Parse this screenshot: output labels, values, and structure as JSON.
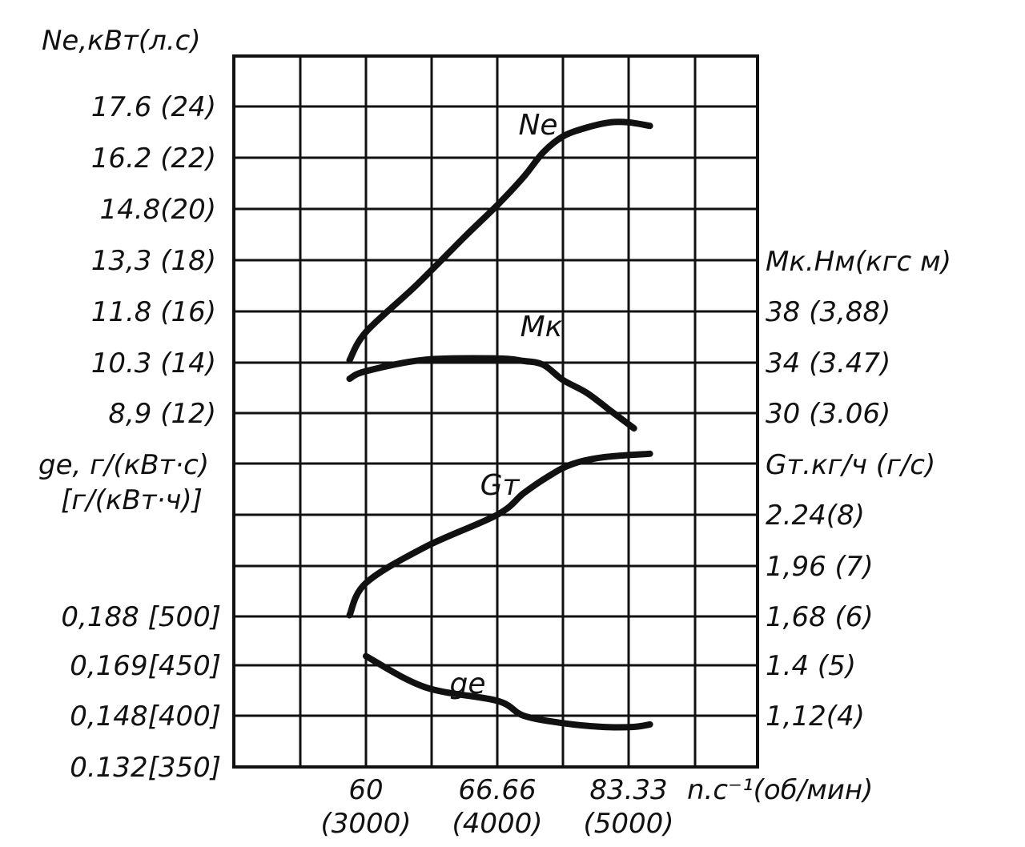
{
  "chart_data": {
    "type": "line",
    "x_title": "n.c⁻¹(об/мин)",
    "x_ticks": [
      {
        "value": 60,
        "label": "60",
        "sub": "(3000)"
      },
      {
        "value": 66.66,
        "label": "66.66",
        "sub": "(4000)"
      },
      {
        "value": 83.33,
        "label": "83.33",
        "sub": "(5000)"
      }
    ],
    "left_axes": [
      {
        "title": "Ne,кВт(л.с)",
        "ticks": [
          "17.6 (24)",
          "16.2 (22)",
          "14.8(20)",
          "13,3 (18)",
          "11.8 (16)",
          "10.3 (14)",
          "8,9 (12)"
        ]
      },
      {
        "title": "ge, г/(кВт·с)",
        "title2": "[г/(кВт·ч)]",
        "ticks": [
          "0,188 [500]",
          "0,169[450]",
          "0,148[400]",
          "0.132[350]"
        ]
      }
    ],
    "right_axes": [
      {
        "title": "Mк.Нм(кгс м)",
        "ticks": [
          "38 (3,88)",
          "34 (3.47)",
          "30 (3.06)"
        ]
      },
      {
        "title": "Gт.кг/ч (г/с)",
        "ticks": [
          "2.24(8)",
          "1,96 (7)",
          "1,68 (6)",
          "1.4 (5)",
          "1,12(4)"
        ]
      }
    ],
    "series": [
      {
        "name": "Ne",
        "axis": "Ne,кВт(л.с)",
        "points": [
          [
            57.5,
            10.4
          ],
          [
            60,
            11.2
          ],
          [
            62.5,
            12.5
          ],
          [
            65,
            13.9
          ],
          [
            66.66,
            14.8
          ],
          [
            70,
            15.6
          ],
          [
            72.5,
            16.3
          ],
          [
            75,
            16.75
          ],
          [
            78,
            17.0
          ],
          [
            81,
            17.15
          ],
          [
            83.33,
            17.15
          ],
          [
            86,
            17.05
          ]
        ]
      },
      {
        "name": "Mк",
        "axis": "Mк.Нм(кгс м)",
        "points": [
          [
            57.5,
            32.7
          ],
          [
            60,
            33.3
          ],
          [
            63,
            34.2
          ],
          [
            66.66,
            34.3
          ],
          [
            70,
            34.1
          ],
          [
            72.5,
            33.8
          ],
          [
            75,
            32.6
          ],
          [
            78,
            31.6
          ],
          [
            81,
            30.2
          ],
          [
            84,
            28.8
          ]
        ]
      },
      {
        "name": "Gт",
        "axis": "Gт.кг/ч (г/с)",
        "points": [
          [
            57.5,
            1.68
          ],
          [
            60,
            1.86
          ],
          [
            63,
            2.06
          ],
          [
            66.66,
            2.24
          ],
          [
            70,
            2.36
          ],
          [
            73,
            2.45
          ],
          [
            76,
            2.52
          ],
          [
            80,
            2.56
          ],
          [
            86,
            2.58
          ]
        ]
      },
      {
        "name": "ge",
        "axis": "ge, г/(кВт·с)",
        "points": [
          [
            60,
            0.172
          ],
          [
            63,
            0.1595
          ],
          [
            66.66,
            0.154
          ],
          [
            70,
            0.148
          ],
          [
            75,
            0.145
          ],
          [
            80,
            0.1435
          ],
          [
            84,
            0.1435
          ],
          [
            86,
            0.1445
          ]
        ]
      }
    ],
    "grid": true
  }
}
